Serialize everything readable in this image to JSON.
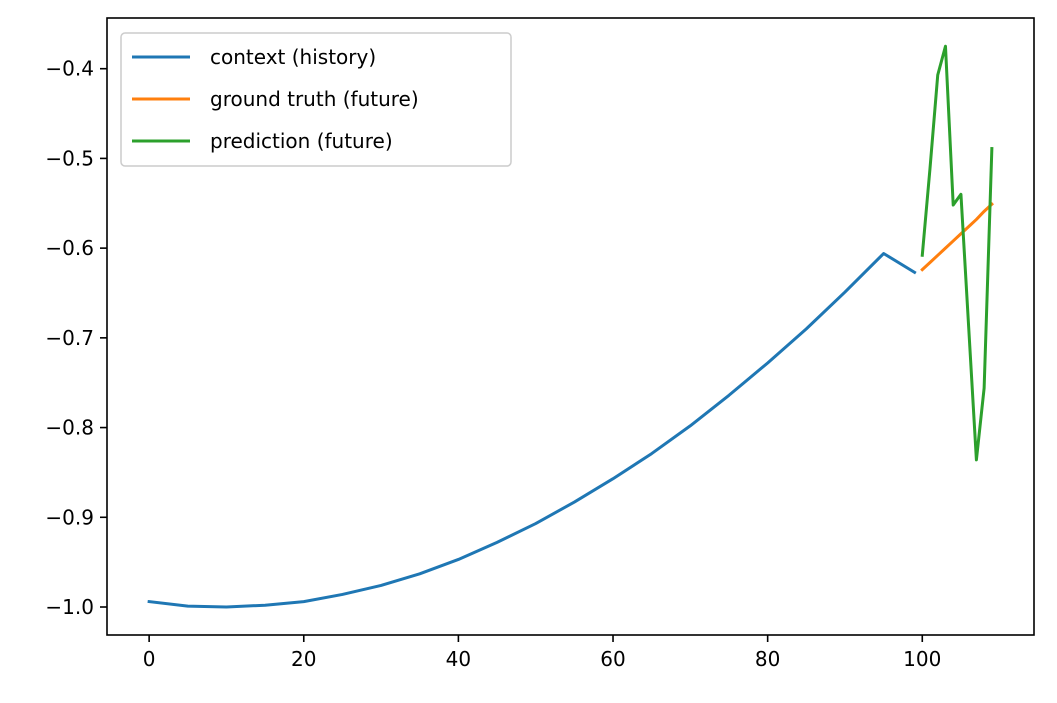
{
  "chart_data": {
    "type": "line",
    "title": "",
    "xlabel": "",
    "ylabel": "",
    "xlim": [
      -5.45,
      114.45
    ],
    "ylim": [
      -1.0312,
      -0.3435
    ],
    "xticks": [
      0,
      20,
      40,
      60,
      80,
      100
    ],
    "yticks": [
      -1.0,
      -0.9,
      -0.8,
      -0.7,
      -0.6,
      -0.5,
      -0.4
    ],
    "ytick_labels": [
      "−1.0",
      "−0.9",
      "−0.8",
      "−0.7",
      "−0.6",
      "−0.5",
      "−0.4"
    ],
    "grid": false,
    "legend_position": "top-left",
    "series": [
      {
        "name": "context (history)",
        "color": "#1f77b4",
        "x": [
          0,
          5,
          10,
          15,
          20,
          25,
          30,
          35,
          40,
          45,
          50,
          55,
          60,
          65,
          70,
          75,
          80,
          85,
          90,
          95,
          99
        ],
        "y": [
          -0.994,
          -0.999,
          -1.0,
          -0.998,
          -0.994,
          -0.986,
          -0.976,
          -0.963,
          -0.947,
          -0.928,
          -0.907,
          -0.883,
          -0.857,
          -0.829,
          -0.798,
          -0.764,
          -0.728,
          -0.69,
          -0.649,
          -0.606,
          -0.627
        ]
      },
      {
        "name": "ground truth (future)",
        "color": "#ff7f0e",
        "x": [
          100,
          101,
          102,
          103,
          104,
          105,
          106,
          107,
          108,
          109
        ],
        "y": [
          -0.624,
          -0.616,
          -0.608,
          -0.6,
          -0.592,
          -0.584,
          -0.576,
          -0.568,
          -0.559,
          -0.551
        ]
      },
      {
        "name": "prediction (future)",
        "color": "#2ca02c",
        "x": [
          100,
          101,
          102,
          103,
          104,
          105,
          106,
          107,
          108,
          109
        ],
        "y": [
          -0.608,
          -0.511,
          -0.407,
          -0.375,
          -0.552,
          -0.54,
          -0.688,
          -0.836,
          -0.756,
          -0.489
        ]
      }
    ]
  }
}
